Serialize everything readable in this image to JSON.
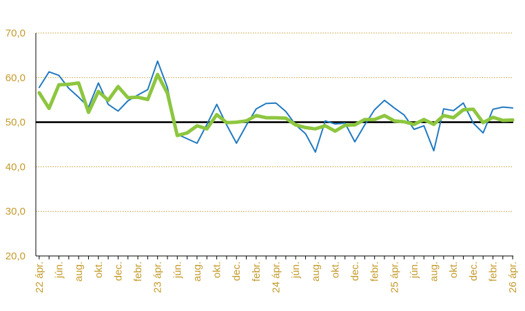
{
  "colors": {
    "series_blue": "#1f78c1",
    "series_green": "#8dc63f",
    "reference": "#000000",
    "grid": "#c49a2a",
    "tick_text": "#c49a2a"
  },
  "chart_data": {
    "type": "line",
    "ylim": [
      20,
      70
    ],
    "yticks": [
      "20,0",
      "30,0",
      "40,0",
      "50,0",
      "60,0",
      "70,0"
    ],
    "grid": "horizontal dotted",
    "reference_line": 50,
    "x_count": 49,
    "x_tick_labels": [
      {
        "i": 0,
        "label": "22 ápr."
      },
      {
        "i": 2,
        "label": "jún."
      },
      {
        "i": 4,
        "label": "aug."
      },
      {
        "i": 6,
        "label": "okt."
      },
      {
        "i": 8,
        "label": "dec."
      },
      {
        "i": 10,
        "label": "febr."
      },
      {
        "i": 12,
        "label": "23 ápr."
      },
      {
        "i": 14,
        "label": "jún."
      },
      {
        "i": 16,
        "label": "aug."
      },
      {
        "i": 18,
        "label": "okt."
      },
      {
        "i": 20,
        "label": "dec."
      },
      {
        "i": 22,
        "label": "febr."
      },
      {
        "i": 24,
        "label": "24 ápr."
      },
      {
        "i": 26,
        "label": "jún."
      },
      {
        "i": 28,
        "label": "aug."
      },
      {
        "i": 30,
        "label": "okt."
      },
      {
        "i": 32,
        "label": "dec."
      },
      {
        "i": 34,
        "label": "febr."
      },
      {
        "i": 36,
        "label": "25 ápr."
      },
      {
        "i": 38,
        "label": "jún."
      },
      {
        "i": 40,
        "label": "aug."
      },
      {
        "i": 42,
        "label": "okt."
      },
      {
        "i": 44,
        "label": "dec."
      },
      {
        "i": 46,
        "label": "febr."
      },
      {
        "i": 48,
        "label": "26 ápr."
      }
    ],
    "series": [
      {
        "values": [
          57.8,
          61.3,
          60.5,
          57.6,
          55.6,
          53.4,
          58.8,
          54.0,
          52.5,
          54.8,
          56.1,
          57.3,
          63.7,
          57.8,
          47.3,
          46.3,
          45.3,
          49.5,
          54.0,
          49.4,
          45.3,
          49.3,
          53.0,
          54.2,
          54.3,
          52.4,
          49.4,
          47.4,
          43.3,
          50.3,
          49.6,
          49.8,
          45.6,
          49.4,
          52.8,
          54.9,
          53.2,
          51.6,
          48.4,
          49.2,
          43.6,
          53.0,
          52.6,
          54.3,
          49.8,
          47.6,
          52.9,
          53.4,
          53.2
        ]
      },
      {
        "values": [
          56.6,
          53.1,
          58.4,
          58.5,
          58.8,
          52.2,
          56.9,
          54.9,
          58.0,
          55.5,
          55.6,
          55.1,
          60.7,
          56.5,
          47.0,
          47.6,
          49.2,
          48.5,
          51.7,
          49.9,
          50.0,
          50.3,
          51.5,
          51.0,
          51.0,
          50.9,
          49.4,
          48.8,
          48.5,
          49.2,
          48.0,
          49.3,
          49.4,
          50.6,
          50.6,
          51.5,
          50.3,
          50.1,
          49.5,
          50.6,
          49.5,
          51.5,
          51.0,
          52.8,
          52.9,
          49.9,
          51.1,
          50.4,
          50.5
        ]
      }
    ]
  }
}
